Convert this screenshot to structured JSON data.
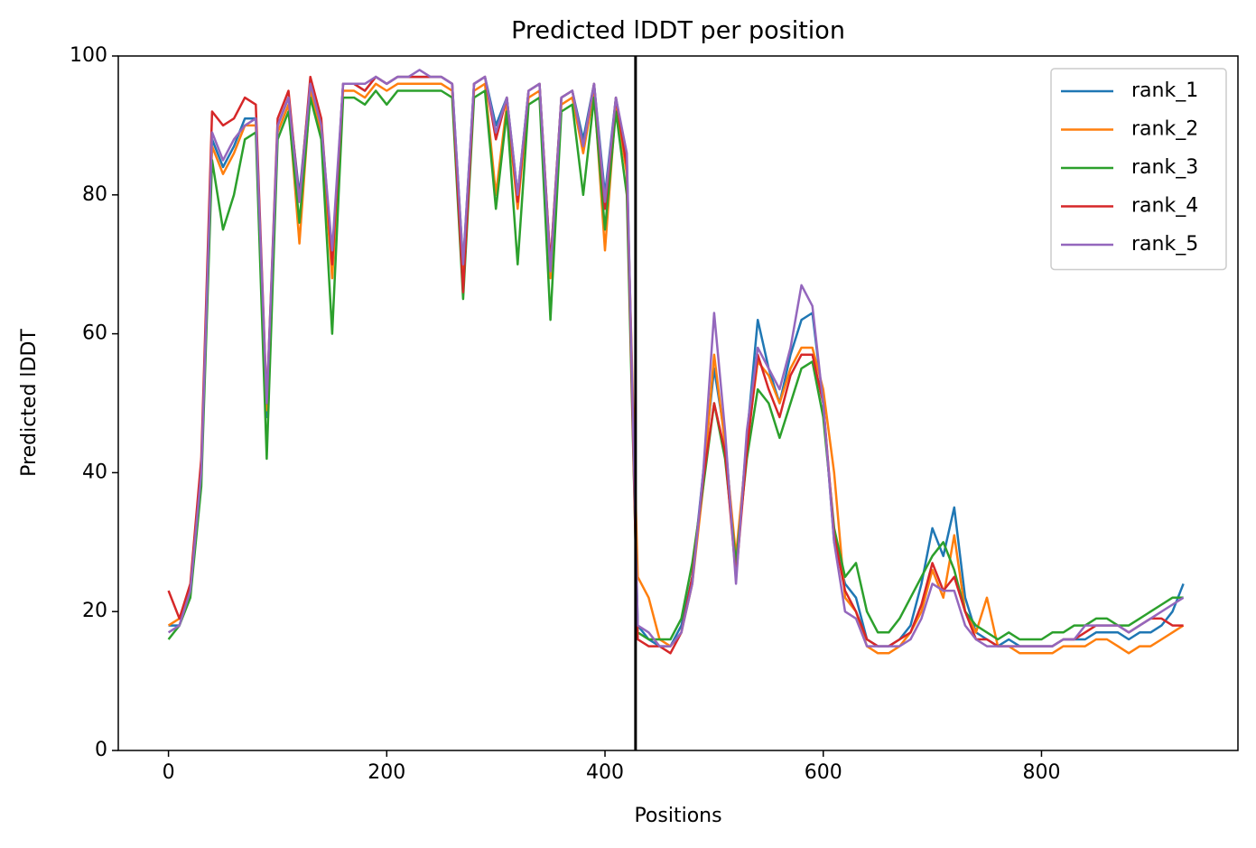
{
  "chart_data": {
    "type": "line",
    "title": "Predicted lDDT per position",
    "xlabel": "Positions",
    "ylabel": "Predicted lDDT",
    "xlim": [
      -46,
      980
    ],
    "ylim": [
      0,
      100
    ],
    "xticks": [
      0,
      200,
      400,
      600,
      800
    ],
    "yticks": [
      0,
      20,
      40,
      60,
      80,
      100
    ],
    "grid": false,
    "legend": "upper right",
    "vline": 428,
    "vline_color": "#000000",
    "x": [
      0,
      10,
      20,
      30,
      40,
      50,
      60,
      70,
      80,
      90,
      100,
      110,
      120,
      130,
      140,
      150,
      160,
      170,
      180,
      190,
      200,
      210,
      220,
      230,
      240,
      250,
      260,
      270,
      280,
      290,
      300,
      310,
      320,
      330,
      340,
      350,
      360,
      370,
      380,
      390,
      400,
      410,
      420,
      430,
      440,
      450,
      460,
      470,
      480,
      490,
      500,
      510,
      520,
      530,
      540,
      550,
      560,
      570,
      580,
      590,
      600,
      610,
      620,
      630,
      640,
      650,
      660,
      670,
      680,
      690,
      700,
      710,
      720,
      730,
      740,
      750,
      760,
      770,
      780,
      790,
      800,
      810,
      820,
      830,
      840,
      850,
      860,
      870,
      880,
      890,
      900,
      910,
      920,
      930
    ],
    "series": [
      {
        "name": "rank_1",
        "color": "#1f77b4",
        "values": [
          18,
          18,
          23,
          40,
          88,
          84,
          87,
          91,
          91,
          48,
          90,
          94,
          80,
          96,
          90,
          70,
          96,
          96,
          95,
          97,
          96,
          97,
          97,
          97,
          97,
          97,
          96,
          70,
          96,
          97,
          90,
          94,
          80,
          95,
          96,
          70,
          94,
          95,
          88,
          96,
          80,
          94,
          85,
          18,
          16,
          15,
          15,
          18,
          25,
          40,
          55,
          45,
          26,
          45,
          62,
          55,
          50,
          57,
          62,
          63,
          50,
          30,
          24,
          22,
          16,
          15,
          15,
          16,
          18,
          24,
          32,
          28,
          35,
          22,
          17,
          16,
          15,
          16,
          15,
          15,
          15,
          15,
          16,
          16,
          16,
          17,
          17,
          17,
          16,
          17,
          17,
          18,
          20,
          24
        ]
      },
      {
        "name": "rank_2",
        "color": "#ff7f0e",
        "values": [
          18,
          19,
          23,
          41,
          87,
          83,
          86,
          90,
          90,
          49,
          89,
          93,
          73,
          95,
          89,
          68,
          95,
          95,
          94,
          96,
          95,
          96,
          96,
          96,
          96,
          96,
          95,
          68,
          95,
          96,
          80,
          93,
          78,
          94,
          95,
          68,
          93,
          94,
          86,
          95,
          72,
          93,
          83,
          25,
          22,
          16,
          15,
          17,
          24,
          38,
          57,
          44,
          28,
          44,
          56,
          54,
          50,
          55,
          58,
          58,
          52,
          40,
          22,
          20,
          15,
          14,
          14,
          15,
          17,
          20,
          26,
          22,
          31,
          20,
          17,
          22,
          15,
          15,
          14,
          14,
          14,
          14,
          15,
          15,
          15,
          16,
          16,
          15,
          14,
          15,
          15,
          16,
          17,
          18
        ]
      },
      {
        "name": "rank_3",
        "color": "#2ca02c",
        "values": [
          16,
          18,
          22,
          38,
          85,
          75,
          80,
          88,
          89,
          42,
          88,
          92,
          76,
          94,
          88,
          60,
          94,
          94,
          93,
          95,
          93,
          95,
          95,
          95,
          95,
          95,
          94,
          65,
          94,
          95,
          78,
          92,
          70,
          93,
          94,
          62,
          92,
          93,
          80,
          94,
          75,
          92,
          80,
          17,
          16,
          16,
          16,
          19,
          27,
          38,
          50,
          42,
          27,
          42,
          52,
          50,
          45,
          50,
          55,
          56,
          48,
          32,
          25,
          27,
          20,
          17,
          17,
          19,
          22,
          25,
          28,
          30,
          26,
          20,
          18,
          17,
          16,
          17,
          16,
          16,
          16,
          17,
          17,
          18,
          18,
          19,
          19,
          18,
          18,
          19,
          20,
          21,
          22,
          22
        ]
      },
      {
        "name": "rank_4",
        "color": "#d62728",
        "values": [
          23,
          19,
          24,
          42,
          92,
          90,
          91,
          94,
          93,
          50,
          91,
          95,
          79,
          97,
          91,
          70,
          96,
          96,
          95,
          97,
          96,
          97,
          97,
          97,
          97,
          97,
          96,
          66,
          96,
          97,
          88,
          94,
          79,
          95,
          96,
          70,
          94,
          95,
          87,
          96,
          78,
          94,
          84,
          16,
          15,
          15,
          14,
          17,
          25,
          39,
          50,
          43,
          25,
          43,
          57,
          52,
          48,
          54,
          57,
          57,
          50,
          31,
          23,
          20,
          16,
          15,
          15,
          16,
          17,
          21,
          27,
          23,
          25,
          20,
          16,
          16,
          15,
          15,
          15,
          15,
          15,
          15,
          16,
          16,
          17,
          18,
          18,
          18,
          17,
          18,
          19,
          19,
          18,
          18
        ]
      },
      {
        "name": "rank_5",
        "color": "#9467bd",
        "values": [
          17,
          18,
          23,
          40,
          89,
          85,
          88,
          90,
          91,
          50,
          90,
          94,
          79,
          96,
          90,
          72,
          96,
          96,
          96,
          97,
          96,
          97,
          97,
          98,
          97,
          97,
          96,
          70,
          96,
          97,
          89,
          94,
          80,
          95,
          96,
          69,
          94,
          95,
          87,
          96,
          79,
          94,
          86,
          18,
          17,
          15,
          15,
          17,
          24,
          40,
          63,
          46,
          24,
          46,
          58,
          55,
          52,
          58,
          67,
          64,
          50,
          30,
          20,
          19,
          15,
          15,
          15,
          15,
          16,
          19,
          24,
          23,
          23,
          18,
          16,
          15,
          15,
          15,
          15,
          15,
          15,
          15,
          16,
          16,
          18,
          18,
          18,
          18,
          17,
          18,
          19,
          20,
          21,
          22
        ]
      }
    ]
  }
}
